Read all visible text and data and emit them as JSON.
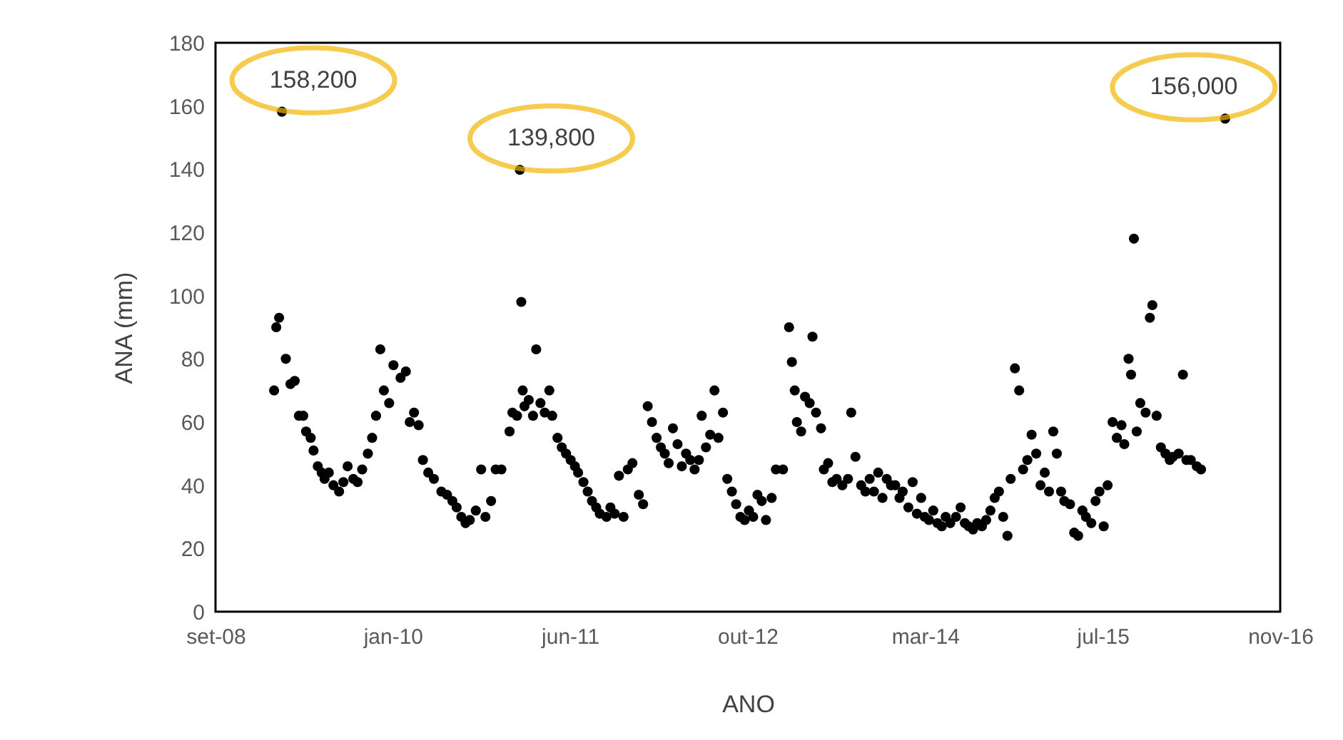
{
  "chart_data": {
    "type": "scatter",
    "xlabel": "ANO",
    "ylabel": "ANA (mm)",
    "xlim": [
      "2008-09-10",
      "2016-11-25"
    ],
    "xticks": [
      {
        "value": "2008-09-10",
        "label": "set-08"
      },
      {
        "value": "2010-01-22",
        "label": "jan-10"
      },
      {
        "value": "2011-06-05",
        "label": "jun-11"
      },
      {
        "value": "2012-10-17",
        "label": "out-12"
      },
      {
        "value": "2014-03-01",
        "label": "mar-14"
      },
      {
        "value": "2015-07-14",
        "label": "jul-15"
      },
      {
        "value": "2016-11-25",
        "label": "nov-16"
      }
    ],
    "ylim": [
      0,
      180
    ],
    "yticks": [
      0,
      20,
      40,
      60,
      80,
      100,
      120,
      140,
      160,
      180
    ],
    "grid": false,
    "marker": "circle",
    "series": [
      {
        "color": "#000000",
        "x": [
          "2009-02-22",
          "2009-02-28",
          "2009-03-08",
          "2009-03-16",
          "2009-03-27",
          "2009-04-09",
          "2009-04-21",
          "2009-05-03",
          "2009-05-15",
          "2009-05-23",
          "2009-06-05",
          "2009-06-13",
          "2009-06-25",
          "2009-07-06",
          "2009-07-14",
          "2009-07-26",
          "2009-08-08",
          "2009-08-24",
          "2009-09-05",
          "2009-09-17",
          "2009-10-03",
          "2009-10-15",
          "2009-10-28",
          "2009-11-13",
          "2009-11-25",
          "2009-12-06",
          "2009-12-18",
          "2009-12-28",
          "2010-01-12",
          "2010-01-24",
          "2010-02-13",
          "2010-02-28",
          "2010-03-11",
          "2010-03-23",
          "2010-04-05",
          "2010-04-17",
          "2010-05-02",
          "2010-05-18",
          "2010-06-08",
          "2010-06-24",
          "2010-07-09",
          "2010-07-21",
          "2010-08-03",
          "2010-08-15",
          "2010-08-27",
          "2010-09-13",
          "2010-09-28",
          "2010-10-10",
          "2010-10-26",
          "2010-11-08",
          "2010-11-24",
          "2010-12-17",
          "2010-12-25",
          "2011-01-07",
          "2011-01-15",
          "2011-01-19",
          "2011-01-23",
          "2011-01-28",
          "2011-02-09",
          "2011-02-21",
          "2011-03-02",
          "2011-03-14",
          "2011-03-26",
          "2011-04-08",
          "2011-04-16",
          "2011-05-01",
          "2011-05-13",
          "2011-05-25",
          "2011-06-07",
          "2011-06-19",
          "2011-06-28",
          "2011-07-13",
          "2011-07-25",
          "2011-08-06",
          "2011-08-18",
          "2011-08-28",
          "2011-09-16",
          "2011-09-27",
          "2011-10-09",
          "2011-10-21",
          "2011-11-03",
          "2011-11-15",
          "2011-11-28",
          "2011-12-16",
          "2011-12-28",
          "2012-01-10",
          "2012-01-22",
          "2012-02-04",
          "2012-02-16",
          "2012-02-27",
          "2012-03-09",
          "2012-03-21",
          "2012-04-03",
          "2012-04-15",
          "2012-04-27",
          "2012-05-09",
          "2012-05-21",
          "2012-06-02",
          "2012-06-10",
          "2012-06-22",
          "2012-07-04",
          "2012-07-16",
          "2012-07-27",
          "2012-08-09",
          "2012-08-21",
          "2012-09-03",
          "2012-09-15",
          "2012-09-27",
          "2012-10-09",
          "2012-10-21",
          "2012-11-02",
          "2012-11-14",
          "2012-11-26",
          "2012-12-08",
          "2012-12-24",
          "2013-01-05",
          "2013-01-25",
          "2013-02-11",
          "2013-02-19",
          "2013-02-27",
          "2013-03-05",
          "2013-03-17",
          "2013-03-28",
          "2013-04-10",
          "2013-04-18",
          "2013-04-28",
          "2013-05-12",
          "2013-05-20",
          "2013-06-01",
          "2013-06-13",
          "2013-06-25",
          "2013-07-11",
          "2013-07-27",
          "2013-08-05",
          "2013-08-17",
          "2013-09-02",
          "2013-09-14",
          "2013-09-26",
          "2013-10-08",
          "2013-10-20",
          "2013-11-01",
          "2013-11-13",
          "2013-11-25",
          "2013-12-07",
          "2013-12-19",
          "2013-12-28",
          "2014-01-13",
          "2014-01-25",
          "2014-02-06",
          "2014-02-18",
          "2014-02-28",
          "2014-03-12",
          "2014-03-24",
          "2014-04-05",
          "2014-04-17",
          "2014-04-28",
          "2014-05-11",
          "2014-05-27",
          "2014-06-09",
          "2014-06-21",
          "2014-07-02",
          "2014-07-14",
          "2014-07-26",
          "2014-08-08",
          "2014-08-20",
          "2014-09-01",
          "2014-09-13",
          "2014-09-25",
          "2014-10-07",
          "2014-10-19",
          "2014-10-28",
          "2014-11-09",
          "2014-11-21",
          "2014-12-02",
          "2014-12-14",
          "2014-12-26",
          "2015-01-08",
          "2015-01-20",
          "2015-02-01",
          "2015-02-13",
          "2015-02-25",
          "2015-03-07",
          "2015-03-19",
          "2015-03-28",
          "2015-04-13",
          "2015-04-25",
          "2015-05-06",
          "2015-05-18",
          "2015-05-28",
          "2015-06-12",
          "2015-06-24",
          "2015-07-05",
          "2015-07-17",
          "2015-07-28",
          "2015-08-11",
          "2015-08-23",
          "2015-09-05",
          "2015-09-13",
          "2015-09-25",
          "2015-10-02",
          "2015-10-10",
          "2015-10-18",
          "2015-10-28",
          "2015-11-12",
          "2015-11-24",
          "2015-12-01",
          "2015-12-13",
          "2015-12-25",
          "2016-01-07",
          "2016-01-19",
          "2016-01-28",
          "2016-02-13",
          "2016-02-25",
          "2016-03-06",
          "2016-03-18",
          "2016-04-04",
          "2016-04-16",
          "2016-06-23"
        ],
        "values": [
          70,
          90,
          93,
          158.2,
          80,
          72,
          73,
          62,
          62,
          57,
          55,
          51,
          46,
          44,
          42,
          44,
          40,
          38,
          41,
          46,
          42,
          41,
          45,
          50,
          55,
          62,
          83,
          70,
          66,
          78,
          74,
          76,
          60,
          63,
          59,
          48,
          44,
          42,
          38,
          37,
          35,
          33,
          30,
          28,
          29,
          32,
          45,
          30,
          35,
          45,
          45,
          57,
          63,
          62,
          139.8,
          98,
          70,
          65,
          67,
          62,
          83,
          66,
          63,
          70,
          62,
          55,
          52,
          50,
          48,
          46,
          44,
          41,
          38,
          35,
          33,
          31,
          30,
          33,
          31,
          43,
          30,
          45,
          47,
          37,
          34,
          65,
          60,
          55,
          52,
          50,
          47,
          58,
          53,
          46,
          50,
          48,
          45,
          48,
          62,
          52,
          56,
          70,
          55,
          63,
          42,
          38,
          34,
          30,
          29,
          32,
          30,
          37,
          35,
          29,
          36,
          45,
          45,
          90,
          79,
          70,
          60,
          57,
          68,
          66,
          87,
          63,
          58,
          45,
          47,
          41,
          42,
          40,
          42,
          63,
          49,
          40,
          38,
          42,
          38,
          44,
          36,
          42,
          40,
          40,
          36,
          38,
          33,
          41,
          31,
          36,
          30,
          29,
          32,
          28,
          27,
          30,
          28,
          30,
          33,
          28,
          27,
          26,
          28,
          27,
          29,
          32,
          36,
          38,
          30,
          24,
          42,
          77,
          70,
          45,
          48,
          56,
          50,
          40,
          44,
          38,
          57,
          50,
          38,
          35,
          34,
          25,
          24,
          32,
          30,
          28,
          35,
          38,
          27,
          40,
          60,
          55,
          59,
          53,
          80,
          75,
          118,
          57,
          66,
          63,
          93,
          97,
          62,
          52,
          50,
          48,
          49,
          50,
          75,
          48,
          48,
          46,
          45,
          156.0
        ]
      }
    ],
    "annotations": [
      {
        "text": "158,200",
        "x": "2009-03-16",
        "y": 158.2
      },
      {
        "text": "139,800",
        "x": "2011-01-15",
        "y": 139.8
      },
      {
        "text": "156,000",
        "x": "2016-06-23",
        "y": 156.0
      }
    ]
  }
}
